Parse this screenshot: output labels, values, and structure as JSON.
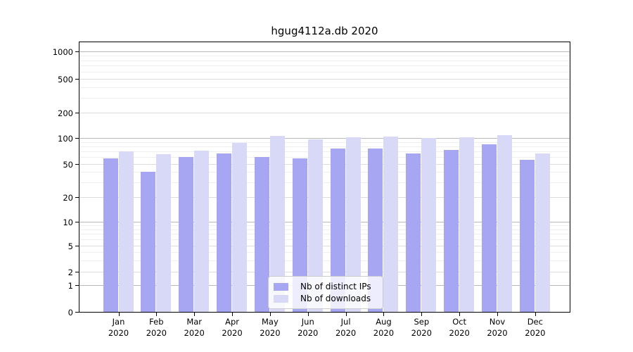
{
  "title": "hgug4112a.db 2020",
  "colors": {
    "ips_bar": "#a6a6f2",
    "downloads_bar": "#d8d8f7",
    "grid_power10": "#b9b9b9",
    "grid_major": "#dcdcdc",
    "grid_minor": "#efefef",
    "axis": "#000000",
    "legend_border": "#cbcbcb"
  },
  "legend": {
    "items": [
      {
        "label": "Nb of distinct IPs",
        "series": "ips"
      },
      {
        "label": "Nb of downloads",
        "series": "downloads"
      }
    ]
  },
  "chart_data": {
    "type": "bar",
    "title": "hgug4112a.db 2020",
    "categories": [
      "Jan",
      "Feb",
      "Mar",
      "Apr",
      "May",
      "Jun",
      "Jul",
      "Aug",
      "Sep",
      "Oct",
      "Nov",
      "Dec"
    ],
    "year_label": "2020",
    "series": [
      {
        "name": "Nb of distinct IPs",
        "values": [
          58,
          40,
          60,
          66,
          60,
          58,
          76,
          75,
          66,
          73,
          84,
          56
        ]
      },
      {
        "name": "Nb of downloads",
        "values": [
          70,
          65,
          71,
          88,
          105,
          97,
          102,
          104,
          100,
          101,
          108,
          66
        ]
      }
    ],
    "xlabel": "",
    "ylabel": "",
    "yscale": "symlog",
    "ylim": [
      0,
      1000
    ],
    "yticks": [
      0,
      1,
      2,
      5,
      10,
      20,
      50,
      100,
      200,
      500,
      1000
    ],
    "ytick_labels": [
      "0",
      "1",
      "2",
      "5",
      "10",
      "20",
      "50",
      "100",
      "200",
      "500",
      "1000"
    ],
    "minor_grid_values": [
      3,
      4,
      6,
      7,
      8,
      9,
      30,
      40,
      60,
      70,
      80,
      90,
      300,
      400,
      600,
      700,
      800,
      900
    ],
    "grid": true,
    "legend_position": "bottom-center"
  }
}
